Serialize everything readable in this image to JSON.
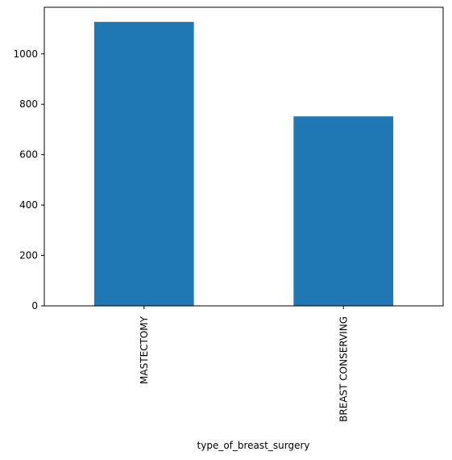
{
  "chart_data": {
    "type": "bar",
    "title": "",
    "xlabel": "type_of_breast_surgery",
    "ylabel": "",
    "categories": [
      "MASTECTOMY",
      "BREAST CONSERVING"
    ],
    "values": [
      1127,
      752
    ],
    "ylim": [
      0,
      1185
    ],
    "yticks": [
      0,
      200,
      400,
      600,
      800,
      1000
    ],
    "grid": false,
    "legend": "none",
    "bar_color": "#1f77b4"
  }
}
